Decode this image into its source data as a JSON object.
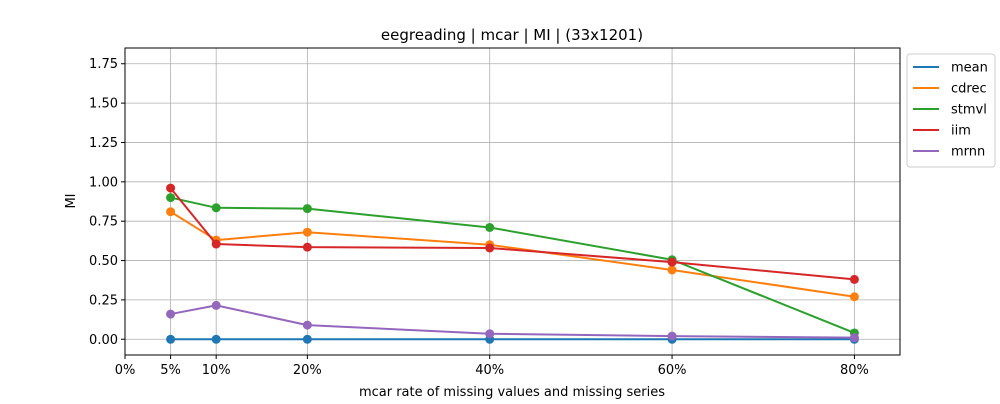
{
  "chart_data": {
    "type": "line",
    "title": "eegreading | mcar | MI | (33x1201)",
    "xlabel": "mcar rate of missing values and missing series",
    "ylabel": "MI",
    "x": [
      5,
      10,
      20,
      40,
      60,
      80
    ],
    "xlim": [
      0,
      85
    ],
    "ylim": [
      -0.1,
      1.85
    ],
    "xticks": [
      {
        "value": 0,
        "label": "0%"
      },
      {
        "value": 5,
        "label": "5%"
      },
      {
        "value": 10,
        "label": "10%"
      },
      {
        "value": 20,
        "label": "20%"
      },
      {
        "value": 40,
        "label": "40%"
      },
      {
        "value": 60,
        "label": "60%"
      },
      {
        "value": 80,
        "label": "80%"
      }
    ],
    "yticks": [
      {
        "value": 0.0,
        "label": "0.00"
      },
      {
        "value": 0.25,
        "label": "0.25"
      },
      {
        "value": 0.5,
        "label": "0.50"
      },
      {
        "value": 0.75,
        "label": "0.75"
      },
      {
        "value": 1.0,
        "label": "1.00"
      },
      {
        "value": 1.25,
        "label": "1.25"
      },
      {
        "value": 1.5,
        "label": "1.50"
      },
      {
        "value": 1.75,
        "label": "1.75"
      }
    ],
    "grid": true,
    "legend_position": "outside-top-right",
    "series": [
      {
        "name": "mean",
        "color": "#1f77b4",
        "values": [
          0.0,
          0.0,
          0.0,
          0.0,
          0.0,
          0.0
        ]
      },
      {
        "name": "cdrec",
        "color": "#ff7f0e",
        "values": [
          0.81,
          0.63,
          0.68,
          0.6,
          0.44,
          0.27
        ]
      },
      {
        "name": "stmvl",
        "color": "#2ca02c",
        "values": [
          0.9,
          0.835,
          0.83,
          0.71,
          0.505,
          0.04
        ]
      },
      {
        "name": "iim",
        "color": "#d62728",
        "values": [
          0.96,
          0.605,
          0.585,
          0.58,
          0.49,
          0.38
        ]
      },
      {
        "name": "mrnn",
        "color": "#9467bd",
        "values": [
          0.16,
          0.215,
          0.09,
          0.035,
          0.02,
          0.01
        ]
      }
    ]
  }
}
